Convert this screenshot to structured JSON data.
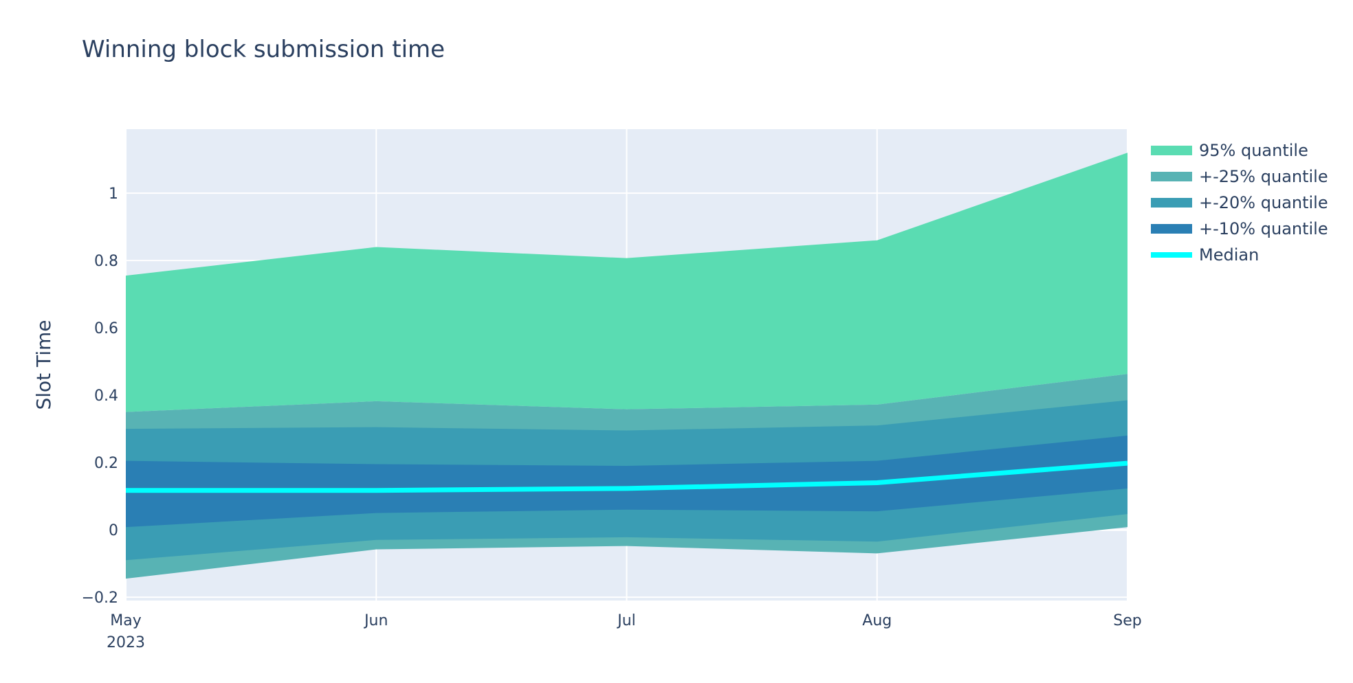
{
  "title": "Winning block submission time",
  "chart_data": {
    "type": "area",
    "title": "Winning block submission time",
    "xlabel": "",
    "ylabel": "Slot Time",
    "x": [
      "2023-05-01",
      "2023-06-01",
      "2023-07-01",
      "2023-08-01",
      "2023-09-01"
    ],
    "x_tick_labels": [
      "May",
      "Jun",
      "Jul",
      "Aug",
      "Sep"
    ],
    "x_tick_sublabel": "2023",
    "y_ticks": [
      -0.2,
      0,
      0.2,
      0.4,
      0.6,
      0.8,
      1
    ],
    "y_tick_labels": [
      "−0.2",
      "0",
      "0.2",
      "0.4",
      "0.6",
      "0.8",
      "1"
    ],
    "ylim": [
      -0.21,
      1.19
    ],
    "grid": true,
    "legend_position": "right",
    "series": [
      {
        "name": "95% quantile",
        "color": "#5adcb2",
        "upper": [
          0.755,
          0.84,
          0.807,
          0.86,
          1.12
        ],
        "lower": [
          0.35,
          0.382,
          0.358,
          0.372,
          0.463
        ]
      },
      {
        "name": "+-25% quantile",
        "color": "#58b3b4",
        "upper": [
          0.35,
          0.382,
          0.358,
          0.372,
          0.463
        ],
        "lower": [
          -0.145,
          -0.058,
          -0.048,
          -0.07,
          0.008
        ]
      },
      {
        "name": "+-20% quantile",
        "color": "#3a9db4",
        "upper": [
          0.3,
          0.305,
          0.295,
          0.31,
          0.385
        ],
        "lower": [
          -0.09,
          -0.03,
          -0.022,
          -0.035,
          0.047
        ]
      },
      {
        "name": "+-10% quantile",
        "color": "#2a7fb4",
        "upper": [
          0.205,
          0.195,
          0.19,
          0.205,
          0.28
        ],
        "lower": [
          0.008,
          0.05,
          0.06,
          0.055,
          0.123
        ]
      },
      {
        "name": "Median",
        "color": "#00ffff",
        "type": "line",
        "values": [
          0.117,
          0.117,
          0.123,
          0.14,
          0.198
        ]
      }
    ]
  },
  "colors": {
    "plot_background": "#e5ecf6",
    "gridline": "#ffffff",
    "text": "#2a3f5f"
  }
}
